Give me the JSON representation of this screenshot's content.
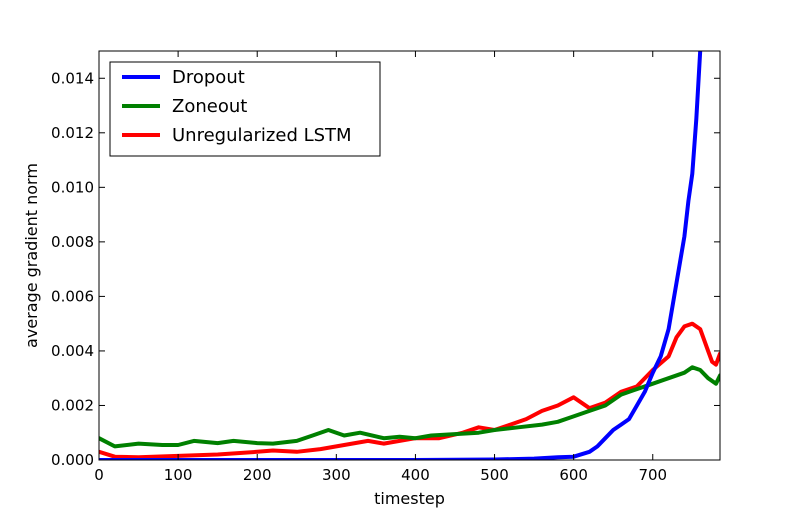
{
  "chart_data": {
    "type": "line",
    "title": "",
    "xlabel": "timestep",
    "ylabel": "average gradient norm",
    "xlim": [
      0,
      785
    ],
    "ylim": [
      0,
      0.015
    ],
    "xticks": [
      0,
      100,
      200,
      300,
      400,
      500,
      600,
      700
    ],
    "xtick_labels": [
      "0",
      "100",
      "200",
      "300",
      "400",
      "500",
      "600",
      "700"
    ],
    "yticks": [
      0,
      0.002,
      0.004,
      0.006,
      0.008,
      0.01,
      0.012,
      0.014
    ],
    "ytick_labels": [
      "0.000",
      "0.002",
      "0.004",
      "0.006",
      "0.008",
      "0.010",
      "0.012",
      "0.014"
    ],
    "grid": false,
    "legend_position": "top-left",
    "series": [
      {
        "name": "Dropout",
        "color": "#0000ff",
        "x": [
          0,
          100,
          200,
          300,
          400,
          500,
          550,
          580,
          600,
          620,
          630,
          640,
          650,
          660,
          670,
          680,
          690,
          700,
          710,
          720,
          730,
          740,
          745,
          750,
          755,
          760
        ],
        "y": [
          0.0,
          0.0,
          0.0,
          0.0,
          0.0,
          2e-05,
          5e-05,
          0.0001,
          0.00012,
          0.0003,
          0.0005,
          0.0008,
          0.0011,
          0.0013,
          0.0015,
          0.002,
          0.0025,
          0.0032,
          0.0038,
          0.0048,
          0.0065,
          0.0082,
          0.0095,
          0.0105,
          0.0125,
          0.015
        ]
      },
      {
        "name": "Zoneout",
        "color": "#008000",
        "x": [
          0,
          20,
          50,
          80,
          100,
          120,
          150,
          170,
          200,
          220,
          250,
          270,
          290,
          310,
          330,
          360,
          380,
          400,
          420,
          450,
          480,
          500,
          530,
          560,
          580,
          600,
          620,
          640,
          660,
          680,
          700,
          720,
          740,
          750,
          760,
          770,
          780,
          785
        ],
        "y": [
          0.0008,
          0.0005,
          0.0006,
          0.00055,
          0.00055,
          0.0007,
          0.00062,
          0.0007,
          0.00062,
          0.0006,
          0.0007,
          0.0009,
          0.0011,
          0.0009,
          0.001,
          0.0008,
          0.00085,
          0.0008,
          0.0009,
          0.00095,
          0.001,
          0.0011,
          0.0012,
          0.0013,
          0.0014,
          0.0016,
          0.0018,
          0.002,
          0.0024,
          0.0026,
          0.0028,
          0.003,
          0.0032,
          0.0034,
          0.0033,
          0.003,
          0.0028,
          0.0031
        ]
      },
      {
        "name": "Unregularized LSTM",
        "color": "#ff0000",
        "x": [
          0,
          20,
          50,
          100,
          150,
          200,
          220,
          250,
          280,
          300,
          320,
          340,
          360,
          380,
          400,
          430,
          460,
          480,
          500,
          520,
          540,
          560,
          580,
          600,
          620,
          640,
          660,
          680,
          700,
          720,
          730,
          740,
          750,
          760,
          770,
          775,
          780,
          785
        ],
        "y": [
          0.0003,
          0.00012,
          0.0001,
          0.00015,
          0.0002,
          0.0003,
          0.00035,
          0.0003,
          0.0004,
          0.0005,
          0.0006,
          0.0007,
          0.0006,
          0.0007,
          0.0008,
          0.0008,
          0.001,
          0.0012,
          0.0011,
          0.0013,
          0.0015,
          0.0018,
          0.002,
          0.0023,
          0.0019,
          0.0021,
          0.0025,
          0.0027,
          0.0033,
          0.0038,
          0.0045,
          0.0049,
          0.005,
          0.0048,
          0.004,
          0.0036,
          0.0035,
          0.0039
        ]
      }
    ]
  }
}
